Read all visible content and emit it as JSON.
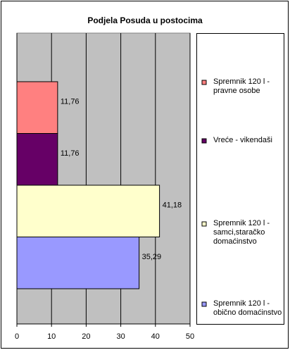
{
  "chart_data": {
    "type": "bar",
    "orientation": "horizontal",
    "title": "Podjela Posuda u postocima",
    "categories": [
      "Spremnik 120 l - pravne osobe",
      "Vreće - vikendaši",
      "Spremnik 120 l - samci,staračko domaćinstvo",
      "Spremnik 120 l - obično domaćinstvo"
    ],
    "values": [
      11.76,
      11.76,
      41.18,
      35.29
    ],
    "value_labels": [
      "11,76",
      "11,76",
      "41,18",
      "35,29"
    ],
    "colors": [
      "#ff8080",
      "#660066",
      "#ffffcc",
      "#9999ff"
    ],
    "xlim": [
      0,
      50
    ],
    "xticks": [
      0,
      10,
      20,
      30,
      40,
      50
    ],
    "grid": true,
    "legend": "right"
  }
}
